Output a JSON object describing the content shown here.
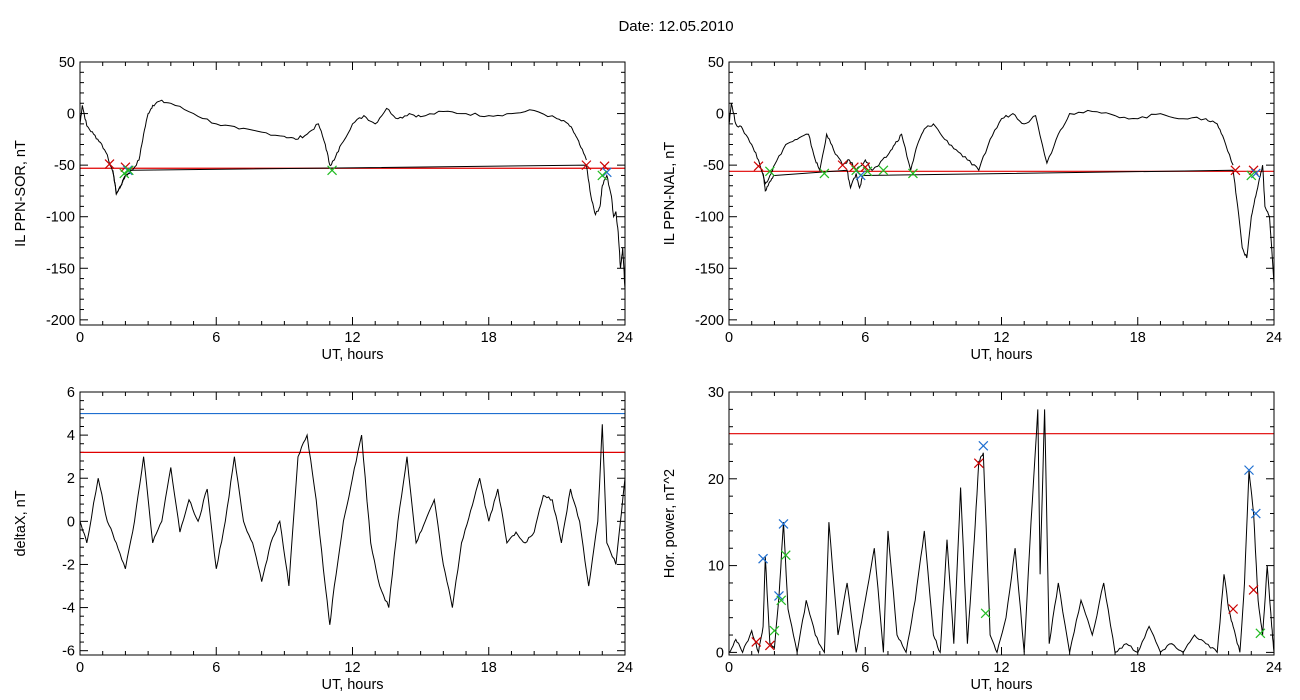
{
  "figure": {
    "title": "Date:  12.05.2010"
  },
  "chart_data": [
    {
      "id": "sor",
      "type": "line",
      "xlabel": "UT, hours",
      "ylabel": "IL PPN-SOR, nT",
      "xlim": [
        0,
        24
      ],
      "ylim": [
        -205,
        50
      ],
      "xticks": [
        0,
        6,
        12,
        18,
        24
      ],
      "yticks": [
        50,
        0,
        -50,
        -100,
        -150,
        -200
      ],
      "threshold_lines": [
        {
          "value": -53,
          "color": "#e00000"
        }
      ],
      "series": [
        {
          "style": "black",
          "x": [
            0,
            0.1,
            0.3,
            0.6,
            0.9,
            1.2,
            1.5,
            1.6,
            1.8,
            2.0,
            2.3,
            2.6,
            2.8,
            3.0,
            3.2,
            3.5,
            4.0,
            5.0,
            6.0,
            7.0,
            8.0,
            9.0,
            9.5,
            10.0,
            10.5,
            10.8,
            11.0,
            11.2,
            11.5,
            12.0,
            12.5,
            13.0,
            13.5,
            14.0,
            14.5,
            15.0,
            16.0,
            17.0,
            18.0,
            19.0,
            20.0,
            21.0,
            21.5,
            21.8,
            22.0,
            22.3
          ],
          "y": [
            -10,
            8,
            -12,
            -20,
            -28,
            -40,
            -62,
            -78,
            -70,
            -60,
            -55,
            -45,
            -20,
            0,
            8,
            12,
            10,
            0,
            -10,
            -15,
            -18,
            -22,
            -25,
            -20,
            -10,
            -30,
            -50,
            -45,
            -30,
            -10,
            -2,
            -10,
            5,
            -5,
            0,
            -3,
            2,
            0,
            -2,
            0,
            3,
            -5,
            -10,
            -20,
            -30,
            -45
          ]
        },
        {
          "style": "blue",
          "x": [
            1.45,
            1.6,
            1.8,
            2.0,
            2.3,
            22.3,
            22.5,
            22.7,
            22.9,
            23.0,
            23.2,
            23.4,
            23.5,
            23.6,
            23.7,
            23.8,
            23.9,
            24.0
          ],
          "y": [
            -55,
            -78,
            -70,
            -60,
            -55,
            -50,
            -80,
            -98,
            -90,
            -70,
            -60,
            -80,
            -100,
            -95,
            -115,
            -150,
            -130,
            -170
          ]
        }
      ],
      "markers": [
        {
          "color": "#cc0000",
          "points": [
            [
              1.3,
              -49
            ],
            [
              2.0,
              -52
            ],
            [
              22.3,
              -50
            ],
            [
              23.1,
              -51
            ]
          ]
        },
        {
          "color": "#1f6fd0",
          "points": [
            [
              2.1,
              -55
            ],
            [
              23.2,
              -57
            ]
          ]
        },
        {
          "color": "#22bb22",
          "points": [
            [
              1.95,
              -58
            ],
            [
              2.15,
              -55
            ],
            [
              11.1,
              -55
            ],
            [
              23.0,
              -60
            ]
          ]
        }
      ]
    },
    {
      "id": "nal",
      "type": "line",
      "xlabel": "UT, hours",
      "ylabel": "IL PPN-NAL, nT",
      "xlim": [
        0,
        24
      ],
      "ylim": [
        -205,
        50
      ],
      "xticks": [
        0,
        6,
        12,
        18,
        24
      ],
      "yticks": [
        50,
        0,
        -50,
        -100,
        -150,
        -200
      ],
      "threshold_lines": [
        {
          "value": -56,
          "color": "#e00000"
        }
      ],
      "series": [
        {
          "style": "black",
          "x": [
            0,
            0.1,
            0.3,
            0.6,
            1.0,
            1.3,
            1.6,
            1.8,
            2.0,
            2.5,
            3.0,
            3.5,
            3.8,
            4.0,
            4.3,
            4.6,
            5.0,
            5.3,
            5.6,
            6.0,
            6.3,
            6.6,
            7.0,
            7.3,
            7.6,
            8.0,
            8.3,
            8.6,
            9.0,
            9.5,
            10.0,
            10.5,
            11.0,
            11.5,
            12.0,
            12.5,
            13.0,
            13.5,
            14.0,
            14.5,
            15.0,
            16.0,
            17.0,
            18.0,
            19.0,
            20.0,
            21.0,
            21.5,
            21.8,
            22.2
          ],
          "y": [
            -10,
            10,
            -10,
            -15,
            -30,
            -45,
            -68,
            -60,
            -50,
            -30,
            -25,
            -20,
            -45,
            -55,
            -20,
            -35,
            -50,
            -45,
            -55,
            -45,
            -55,
            -50,
            -40,
            -30,
            -20,
            -55,
            -30,
            -15,
            -10,
            -25,
            -35,
            -45,
            -55,
            -25,
            -5,
            0,
            -10,
            -2,
            -48,
            -20,
            0,
            2,
            -2,
            -5,
            0,
            -5,
            -5,
            -10,
            -25,
            -50
          ]
        },
        {
          "style": "blue",
          "x": [
            1.5,
            1.6,
            1.8,
            2.0,
            5.2,
            5.35,
            5.6,
            5.75,
            5.9,
            22.2,
            22.4,
            22.6,
            22.8,
            23.0,
            23.2,
            23.4,
            23.5,
            23.6,
            23.8,
            24.0
          ],
          "y": [
            -58,
            -75,
            -66,
            -60,
            -55,
            -72,
            -58,
            -72,
            -60,
            -55,
            -90,
            -130,
            -140,
            -100,
            -80,
            -60,
            -50,
            -90,
            -100,
            -165
          ]
        }
      ],
      "markers": [
        {
          "color": "#cc0000",
          "points": [
            [
              1.3,
              -51
            ],
            [
              5.0,
              -50
            ],
            [
              5.5,
              -52
            ],
            [
              6.0,
              -52
            ],
            [
              22.3,
              -55
            ],
            [
              23.1,
              -55
            ]
          ]
        },
        {
          "color": "#1f6fd0",
          "points": [
            [
              5.8,
              -60
            ],
            [
              23.2,
              -58
            ]
          ]
        },
        {
          "color": "#22bb22",
          "points": [
            [
              1.8,
              -56
            ],
            [
              4.2,
              -58
            ],
            [
              5.6,
              -55
            ],
            [
              6.1,
              -56
            ],
            [
              6.8,
              -55
            ],
            [
              8.1,
              -58
            ],
            [
              23.0,
              -60
            ]
          ]
        }
      ]
    },
    {
      "id": "deltax",
      "type": "line",
      "xlabel": "UT, hours",
      "ylabel": "deltaX, nT",
      "xlim": [
        0,
        24
      ],
      "ylim": [
        -6.2,
        6
      ],
      "xticks": [
        0,
        6,
        12,
        18,
        24
      ],
      "yticks": [
        6,
        4,
        2,
        0,
        -2,
        -4,
        -6
      ],
      "threshold_lines": [
        {
          "value": 5.0,
          "color": "#1f6fd0"
        },
        {
          "value": 3.2,
          "color": "#e00000"
        }
      ],
      "series": [
        {
          "style": "black",
          "x": [
            0,
            0.3,
            0.8,
            1.2,
            1.6,
            2.0,
            2.4,
            2.8,
            3.2,
            3.6,
            4.0,
            4.4,
            4.8,
            5.2,
            5.6,
            6.0,
            6.4,
            6.8,
            7.2,
            7.6,
            8.0,
            8.4,
            8.8,
            9.2,
            9.6,
            10.0,
            10.4,
            10.8,
            11.0,
            11.2,
            11.6,
            12.0,
            12.4,
            12.8,
            13.2,
            13.6,
            14.0,
            14.4,
            14.8,
            15.2,
            15.6,
            16.0,
            16.4,
            16.8,
            17.2,
            17.6,
            18.0,
            18.4,
            18.8,
            19.2,
            19.6,
            20.0,
            20.4,
            20.8,
            21.2,
            21.6,
            22.0,
            22.4,
            22.8,
            23.0,
            23.2,
            23.6,
            24.0
          ],
          "y": [
            0,
            -1,
            2,
            0,
            -1,
            -2.2,
            0,
            3,
            -1,
            0,
            2.5,
            -0.5,
            1,
            0,
            1.5,
            -2.2,
            0,
            3,
            0,
            -1,
            -2.8,
            -1,
            0,
            -3,
            3,
            4,
            1,
            -3,
            -4.8,
            -3,
            0,
            2,
            4,
            -1,
            -3,
            -4,
            0,
            3,
            -1,
            0,
            1,
            -2,
            -4,
            -1,
            0.5,
            2,
            0,
            1.5,
            -1,
            -0.5,
            -1,
            -0.5,
            1.2,
            1,
            -1,
            1.5,
            0,
            -3,
            0,
            4.5,
            -1,
            -2,
            2
          ]
        }
      ],
      "markers": []
    },
    {
      "id": "hor",
      "type": "line",
      "xlabel": "UT, hours",
      "ylabel": "Hor. power, nT^2",
      "xlim": [
        0,
        24
      ],
      "ylim": [
        -0.3,
        30
      ],
      "xticks": [
        0,
        6,
        12,
        18,
        24
      ],
      "yticks": [
        30,
        20,
        10,
        0
      ],
      "threshold_lines": [
        {
          "value": 25.2,
          "color": "#e00000"
        }
      ],
      "series": [
        {
          "style": "black",
          "x": [
            0,
            0.3,
            0.6,
            1.0,
            1.3,
            1.5,
            1.6,
            1.8,
            2.0,
            2.2,
            2.4,
            2.6,
            3.0,
            3.4,
            3.8,
            4.2,
            4.4,
            4.8,
            5.2,
            5.6,
            6.0,
            6.4,
            6.8,
            7.0,
            7.4,
            7.8,
            8.2,
            8.6,
            9.0,
            9.3,
            9.6,
            9.9,
            10.2,
            10.5,
            10.8,
            11.0,
            11.2,
            11.5,
            11.8,
            12.2,
            12.6,
            13.0,
            13.3,
            13.6,
            13.7,
            13.9,
            14.1,
            14.5,
            15.0,
            15.5,
            16.0,
            16.5,
            17.0,
            17.5,
            18.0,
            18.5,
            19.0,
            19.5,
            20.0,
            20.5,
            21.0,
            21.5,
            21.8,
            22.0,
            22.2,
            22.5,
            22.7,
            22.9,
            23.1,
            23.3,
            23.5,
            23.7,
            23.9,
            24.0
          ],
          "y": [
            0,
            1.5,
            0,
            2.5,
            0,
            3,
            11,
            1,
            0.5,
            6.5,
            15,
            5,
            0,
            6,
            2,
            0,
            15,
            2,
            8,
            0,
            6,
            12,
            0,
            14,
            2,
            0,
            6,
            14,
            2,
            0,
            13,
            1,
            19,
            1,
            13,
            22,
            23,
            2,
            0,
            4,
            12,
            0,
            15,
            28,
            9,
            28,
            1,
            8,
            0,
            6,
            2,
            8,
            0,
            1,
            0,
            3,
            0,
            1,
            0,
            2,
            1,
            0,
            9,
            5,
            3,
            0,
            8,
            21,
            16,
            6,
            2,
            10,
            3,
            0
          ]
        }
      ],
      "markers": [
        {
          "color": "#cc0000",
          "points": [
            [
              1.2,
              1.2
            ],
            [
              1.8,
              0.8
            ],
            [
              11.0,
              21.8
            ],
            [
              22.2,
              5.0
            ],
            [
              23.1,
              7.2
            ]
          ]
        },
        {
          "color": "#1f6fd0",
          "points": [
            [
              1.5,
              10.8
            ],
            [
              2.2,
              6.5
            ],
            [
              2.4,
              14.8
            ],
            [
              11.2,
              23.8
            ],
            [
              22.9,
              21.0
            ],
            [
              23.2,
              16.0
            ]
          ]
        },
        {
          "color": "#22bb22",
          "points": [
            [
              2.0,
              2.5
            ],
            [
              2.3,
              6.0
            ],
            [
              2.5,
              11.2
            ],
            [
              11.3,
              4.5
            ],
            [
              23.4,
              2.2
            ]
          ]
        }
      ]
    }
  ]
}
